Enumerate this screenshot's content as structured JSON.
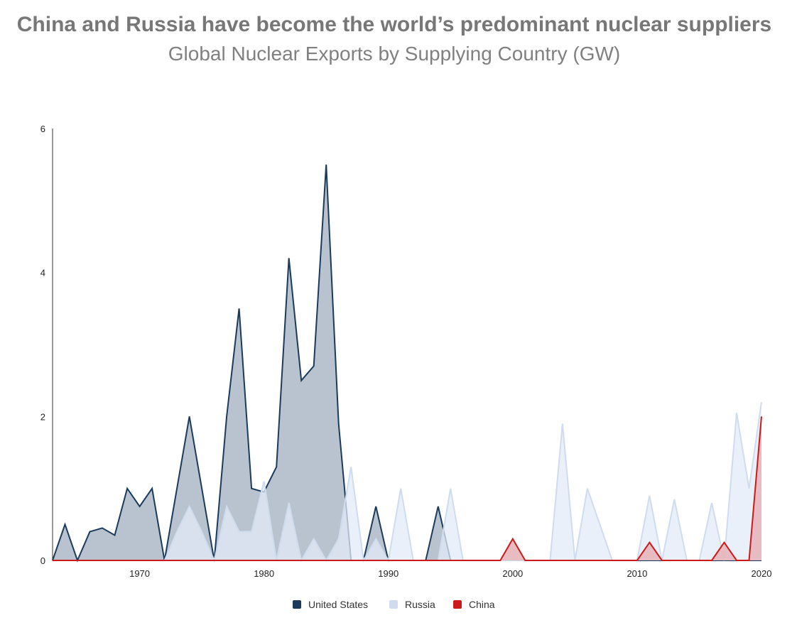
{
  "title": "China and Russia have become the world’s predominant nuclear suppliers",
  "subtitle": "Global Nuclear Exports by Supplying Country (GW)",
  "colors": {
    "us_line": "#1b3a5c",
    "us_fill": "#b5c0cc",
    "ru_line": "#cfdcee",
    "ru_fill": "#e3ebf7",
    "cn_line": "#cc1a1a",
    "cn_fill": "#e7b5ba"
  },
  "chart_data": {
    "type": "area",
    "title": "Global Nuclear Exports by Supplying Country (GW)",
    "xlabel": "",
    "ylabel": "",
    "xlim": [
      1963,
      2020
    ],
    "ylim": [
      0,
      6
    ],
    "x_ticks": [
      1970,
      1980,
      1990,
      2000,
      2010,
      2020
    ],
    "y_ticks": [
      0,
      2,
      4,
      6
    ],
    "legend_position": "bottom-center",
    "grid": false,
    "series": [
      {
        "name": "United States",
        "x": [
          1963,
          1964,
          1965,
          1966,
          1967,
          1968,
          1969,
          1970,
          1971,
          1972,
          1973,
          1974,
          1975,
          1976,
          1977,
          1978,
          1979,
          1980,
          1981,
          1982,
          1983,
          1984,
          1985,
          1986,
          1987,
          1988,
          1989,
          1990,
          1991,
          1992,
          1993,
          1994,
          1995,
          1996,
          1997,
          1998,
          1999,
          2000,
          2001,
          2002,
          2003,
          2004,
          2005,
          2006,
          2007,
          2008,
          2009,
          2010,
          2011,
          2012,
          2013,
          2014,
          2015,
          2016,
          2017,
          2018,
          2019,
          2020
        ],
        "values": [
          0,
          0.5,
          0,
          0.4,
          0.45,
          0.35,
          1.0,
          0.75,
          1.0,
          0,
          1.0,
          2.0,
          1.0,
          0,
          2.0,
          3.5,
          1.0,
          0.95,
          1.3,
          4.2,
          2.5,
          2.7,
          5.5,
          1.9,
          0,
          0,
          0.75,
          0,
          0,
          0,
          0,
          0.75,
          0,
          0,
          0,
          0,
          0,
          0,
          0,
          0,
          0,
          0,
          0,
          0,
          0,
          0,
          0,
          0,
          0,
          0,
          0,
          0,
          0,
          0,
          0,
          0,
          0,
          0
        ]
      },
      {
        "name": "Russia",
        "x": [
          1963,
          1964,
          1965,
          1966,
          1967,
          1968,
          1969,
          1970,
          1971,
          1972,
          1973,
          1974,
          1975,
          1976,
          1977,
          1978,
          1979,
          1980,
          1981,
          1982,
          1983,
          1984,
          1985,
          1986,
          1987,
          1988,
          1989,
          1990,
          1991,
          1992,
          1993,
          1994,
          1995,
          1996,
          1997,
          1998,
          1999,
          2000,
          2001,
          2002,
          2003,
          2004,
          2005,
          2006,
          2007,
          2008,
          2009,
          2010,
          2011,
          2012,
          2013,
          2014,
          2015,
          2016,
          2017,
          2018,
          2019,
          2020
        ],
        "values": [
          0,
          0,
          0,
          0,
          0,
          0,
          0,
          0,
          0,
          0,
          0.4,
          0.75,
          0.4,
          0,
          0.75,
          0.4,
          0.4,
          1.1,
          0,
          0.8,
          0,
          0.3,
          0,
          0.3,
          1.3,
          0,
          0.3,
          0,
          1.0,
          0,
          0,
          0,
          1.0,
          0,
          0,
          0,
          0,
          0,
          0,
          0,
          0,
          1.9,
          0,
          1.0,
          0.5,
          0,
          0,
          0,
          0.9,
          0,
          0.85,
          0,
          0,
          0.8,
          0,
          2.05,
          1.0,
          2.2
        ]
      },
      {
        "name": "China",
        "x": [
          1963,
          1964,
          1965,
          1966,
          1967,
          1968,
          1969,
          1970,
          1971,
          1972,
          1973,
          1974,
          1975,
          1976,
          1977,
          1978,
          1979,
          1980,
          1981,
          1982,
          1983,
          1984,
          1985,
          1986,
          1987,
          1988,
          1989,
          1990,
          1991,
          1992,
          1993,
          1994,
          1995,
          1996,
          1997,
          1998,
          1999,
          2000,
          2001,
          2002,
          2003,
          2004,
          2005,
          2006,
          2007,
          2008,
          2009,
          2010,
          2011,
          2012,
          2013,
          2014,
          2015,
          2016,
          2017,
          2018,
          2019,
          2020
        ],
        "values": [
          0,
          0,
          0,
          0,
          0,
          0,
          0,
          0,
          0,
          0,
          0,
          0,
          0,
          0,
          0,
          0,
          0,
          0,
          0,
          0,
          0,
          0,
          0,
          0,
          0,
          0,
          0,
          0,
          0,
          0,
          0,
          0,
          0,
          0,
          0,
          0,
          0,
          0.3,
          0,
          0,
          0,
          0,
          0,
          0,
          0,
          0,
          0,
          0,
          0.25,
          0,
          0,
          0,
          0,
          0,
          0.25,
          0,
          0,
          2.0
        ]
      }
    ]
  }
}
